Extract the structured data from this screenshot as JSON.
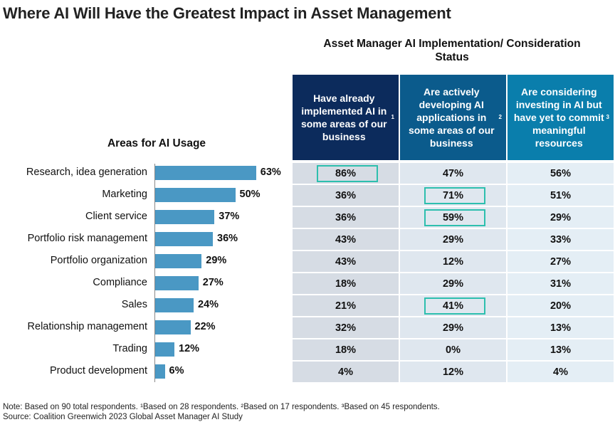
{
  "title": "Where AI Will Have the Greatest Impact in Asset Management",
  "table_title": "Asset Manager AI Implementation/ Consideration Status",
  "areas_title": "Areas for AI Usage",
  "columns": [
    {
      "label": "Have already implemented AI in some areas of our business",
      "sup": "1",
      "color": "#0c2b5c"
    },
    {
      "label": "Are actively developing AI applications in some areas of our business",
      "sup": "2",
      "color": "#0b5b8c"
    },
    {
      "label": "Are considering investing in AI but have yet to commit meaningful resources",
      "sup": "3",
      "color": "#0a7eac"
    }
  ],
  "cell_colors": [
    "#d6dce4",
    "#dfe7ef",
    "#e4eef5"
  ],
  "highlight_color": "#2dbfae",
  "chart_data": {
    "type": "bar",
    "orientation": "horizontal",
    "title": "Areas for AI Usage",
    "categories": [
      "Research, idea generation",
      "Marketing",
      "Client service",
      "Portfolio risk management",
      "Portfolio organization",
      "Compliance",
      "Sales",
      "Relationship management",
      "Trading",
      "Product development"
    ],
    "values": [
      63,
      50,
      37,
      36,
      29,
      27,
      24,
      22,
      12,
      6
    ],
    "value_labels": [
      "63%",
      "50%",
      "37%",
      "36%",
      "29%",
      "27%",
      "24%",
      "22%",
      "12%",
      "6%"
    ],
    "bar_color": "#4a98c4",
    "table": [
      [
        "86%",
        "47%",
        "56%"
      ],
      [
        "36%",
        "71%",
        "51%"
      ],
      [
        "36%",
        "59%",
        "29%"
      ],
      [
        "43%",
        "29%",
        "33%"
      ],
      [
        "43%",
        "12%",
        "27%"
      ],
      [
        "18%",
        "29%",
        "31%"
      ],
      [
        "21%",
        "41%",
        "20%"
      ],
      [
        "32%",
        "29%",
        "13%"
      ],
      [
        "18%",
        "0%",
        "13%"
      ],
      [
        "4%",
        "12%",
        "4%"
      ]
    ],
    "highlighted": [
      [
        0,
        0
      ],
      [
        1,
        1
      ],
      [
        2,
        1
      ],
      [
        6,
        1
      ]
    ]
  },
  "note": "Note: Based on 90 total respondents. ¹Based on 28 respondents. ²Based on 17 respondents. ³Based on 45 respondents.",
  "source": "Source: Coalition Greenwich 2023 Global Asset Manager AI Study"
}
